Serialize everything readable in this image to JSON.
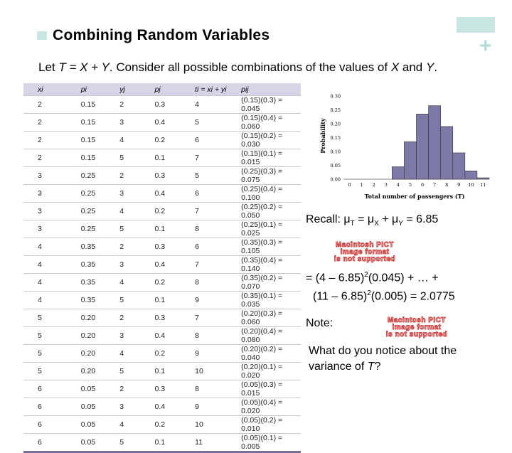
{
  "slide": {
    "title": "Combining Random Variables",
    "subtitle_pre": "Let ",
    "subtitle_eq": "T = X + Y",
    "subtitle_mid": ". Consider all possible combinations of the values of ",
    "subtitle_x": "X",
    "subtitle_and": " and ",
    "subtitle_y": "Y",
    "subtitle_end": "."
  },
  "table": {
    "headers": [
      "xi",
      "pi",
      "yj",
      "pj",
      "ti = xi + yi",
      "pij"
    ],
    "rows": [
      [
        "2",
        "0.15",
        "2",
        "0.3",
        "4",
        "(0.15)(0.3) = 0.045"
      ],
      [
        "2",
        "0.15",
        "3",
        "0.4",
        "5",
        "(0.15)(0.4) = 0.060"
      ],
      [
        "2",
        "0.15",
        "4",
        "0.2",
        "6",
        "(0.15)(0.2) = 0.030"
      ],
      [
        "2",
        "0.15",
        "5",
        "0.1",
        "7",
        "(0.15)(0.1) = 0.015"
      ],
      [
        "3",
        "0.25",
        "2",
        "0.3",
        "5",
        "(0.25)(0.3) = 0.075"
      ],
      [
        "3",
        "0.25",
        "3",
        "0.4",
        "6",
        "(0.25)(0.4) = 0.100"
      ],
      [
        "3",
        "0.25",
        "4",
        "0.2",
        "7",
        "(0.25)(0.2) = 0.050"
      ],
      [
        "3",
        "0.25",
        "5",
        "0.1",
        "8",
        "(0.25)(0.1) = 0.025"
      ],
      [
        "4",
        "0.35",
        "2",
        "0.3",
        "6",
        "(0.35)(0.3) = 0.105"
      ],
      [
        "4",
        "0.35",
        "3",
        "0.4",
        "7",
        "(0.35)(0.4) = 0.140"
      ],
      [
        "4",
        "0.35",
        "4",
        "0.2",
        "8",
        "(0.35)(0.2) = 0.070"
      ],
      [
        "4",
        "0.35",
        "5",
        "0.1",
        "9",
        "(0.35)(0.1) = 0.035"
      ],
      [
        "5",
        "0.20",
        "2",
        "0.3",
        "7",
        "(0.20)(0.3) = 0.060"
      ],
      [
        "5",
        "0.20",
        "3",
        "0.4",
        "8",
        "(0.20)(0.4) = 0.080"
      ],
      [
        "5",
        "0.20",
        "4",
        "0.2",
        "9",
        "(0.20)(0.2) = 0.040"
      ],
      [
        "5",
        "0.20",
        "5",
        "0.1",
        "10",
        "(0.20)(0.1) = 0.020"
      ],
      [
        "6",
        "0.05",
        "2",
        "0.3",
        "8",
        "(0.05)(0.3) = 0.015"
      ],
      [
        "6",
        "0.05",
        "3",
        "0.4",
        "9",
        "(0.05)(0.4) = 0.020"
      ],
      [
        "6",
        "0.05",
        "4",
        "0.2",
        "10",
        "(0.05)(0.2) = 0.010"
      ],
      [
        "6",
        "0.05",
        "5",
        "0.1",
        "11",
        "(0.05)(0.1) = 0.005"
      ]
    ]
  },
  "chart_data": {
    "type": "bar",
    "categories": [
      "0",
      "1",
      "2",
      "3",
      "4",
      "5",
      "6",
      "7",
      "8",
      "9",
      "10",
      "11"
    ],
    "values": [
      0,
      0,
      0,
      0,
      0.045,
      0.135,
      0.235,
      0.265,
      0.19,
      0.095,
      0.03,
      0.005
    ],
    "ylabel": "Probability",
    "xlabel": "Total number of passengers (T)",
    "yticks": [
      "0.00",
      "0.05",
      "0.10",
      "0.15",
      "0.20",
      "0.25",
      "0.30"
    ],
    "ylim": [
      0,
      0.3
    ],
    "bar_color": "#7b7aa6"
  },
  "recall": {
    "prefix": "Recall: μ",
    "sub_t": "T",
    "mid1": " = μ",
    "sub_x": "X",
    "mid2": " + μ",
    "sub_y": "Y",
    "value": " = 6.85"
  },
  "pict_placeholder": {
    "line1": "Macintosh PICT",
    "line2": "image format",
    "line3": "is not supported"
  },
  "variance": {
    "line1_pre": "= (4 – 6.85)",
    "line1_exp": "2",
    "line1_post": "(0.045) + … +",
    "line2_pre": "(11 – 6.85)",
    "line2_exp": "2",
    "line2_post": "(0.005) = 2.0775"
  },
  "note": "Note:",
  "question": {
    "line1": "What do you notice about the",
    "line2_pre": "variance of ",
    "line2_var": "T",
    "line2_post": "?"
  }
}
